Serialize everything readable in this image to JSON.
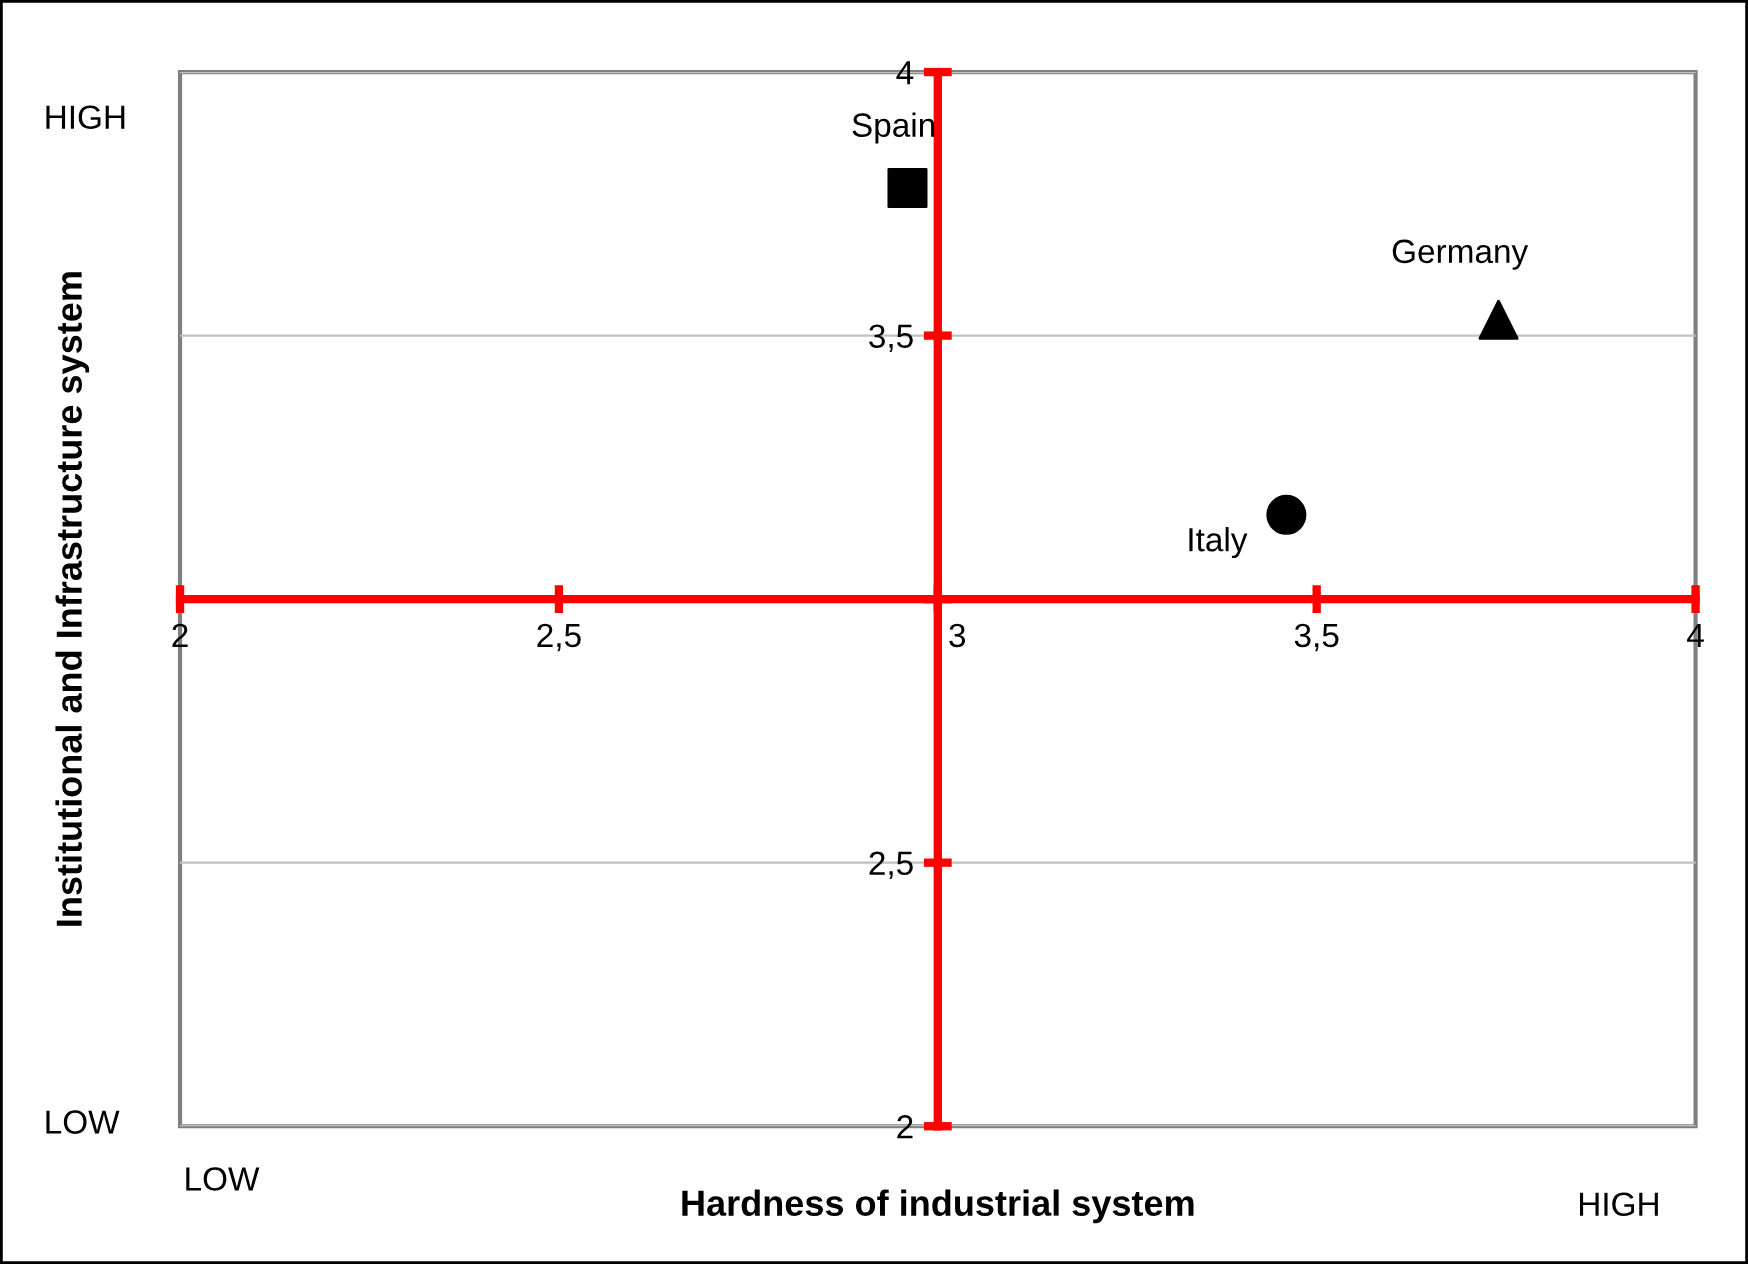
{
  "chart_data": {
    "type": "scatter",
    "xlabel": "Hardness of industrial system",
    "ylabel": "Institutional and Infrastructure system",
    "series": [
      {
        "name": "Spain",
        "color": "#000000",
        "marker": "square",
        "x": [
          2.96
        ],
        "values": [
          3.78
        ]
      },
      {
        "name": "Germany",
        "color": "#000000",
        "marker": "triangle",
        "x": [
          3.74
        ],
        "values": [
          3.53
        ]
      },
      {
        "name": "Italy",
        "color": "#000000",
        "marker": "circle",
        "x": [
          3.46
        ],
        "values": [
          3.16
        ]
      }
    ],
    "xlim": [
      2,
      4
    ],
    "ylim": [
      2,
      4
    ],
    "xticks": [
      2,
      {
        "value": 2.5,
        "label": "2,5"
      },
      3,
      {
        "value": 3.5,
        "label": "3,5"
      },
      4
    ],
    "yticks": [
      2,
      {
        "value": 2.5,
        "label": "2,5"
      },
      {
        "value": 3,
        "label": null
      },
      {
        "value": 3.5,
        "label": "3,5"
      },
      4
    ],
    "grid": "y",
    "annotations": [
      "HIGH",
      "LOW",
      "LOW",
      "HIGH"
    ]
  }
}
